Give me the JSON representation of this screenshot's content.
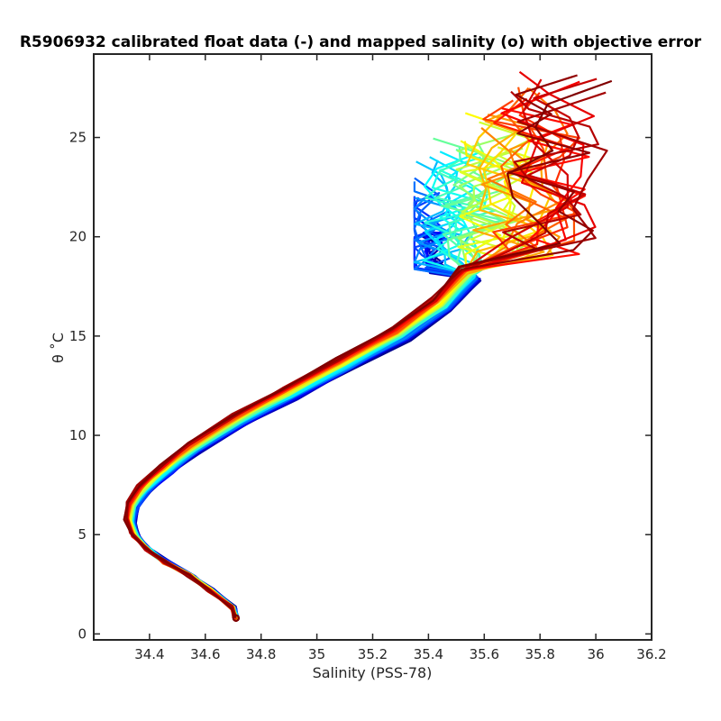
{
  "chart_data": {
    "type": "line",
    "title": "R5906932 calibrated float data (-) and mapped salinity (o) with objective error",
    "xlabel": "Salinity (PSS-78)",
    "ylabel": "θ ˚C",
    "xlim": [
      34.2,
      36.2
    ],
    "ylim": [
      -0.3,
      29.2
    ],
    "x_ticks": [
      "34.4",
      "34.6",
      "34.8",
      "35",
      "35.2",
      "35.4",
      "35.6",
      "35.8",
      "36",
      "36.2"
    ],
    "y_ticks": [
      "0",
      "5",
      "10",
      "15",
      "20",
      "25"
    ],
    "grid": false,
    "legend": "none",
    "colormap": [
      "#00008f",
      "#0000ff",
      "#0080ff",
      "#00ffff",
      "#80ff80",
      "#ffff00",
      "#ff8000",
      "#ff0000",
      "#800000"
    ],
    "profile_count": 60,
    "mean_profile": {
      "salinity": [
        34.71,
        34.7,
        34.62,
        34.55,
        34.46,
        34.4,
        34.35,
        34.33,
        34.34,
        34.38,
        34.46,
        34.56,
        34.72,
        34.9,
        35.1,
        35.3,
        35.45,
        35.55
      ],
      "theta": [
        0.8,
        1.3,
        2.2,
        2.9,
        3.6,
        4.2,
        4.9,
        5.7,
        6.5,
        7.3,
        8.3,
        9.4,
        10.8,
        12.1,
        13.6,
        15.1,
        16.6,
        18.1
      ]
    },
    "surface_layer": {
      "salinity_range": [
        35.35,
        36.1
      ],
      "theta_range": [
        17.5,
        28.5
      ]
    }
  }
}
